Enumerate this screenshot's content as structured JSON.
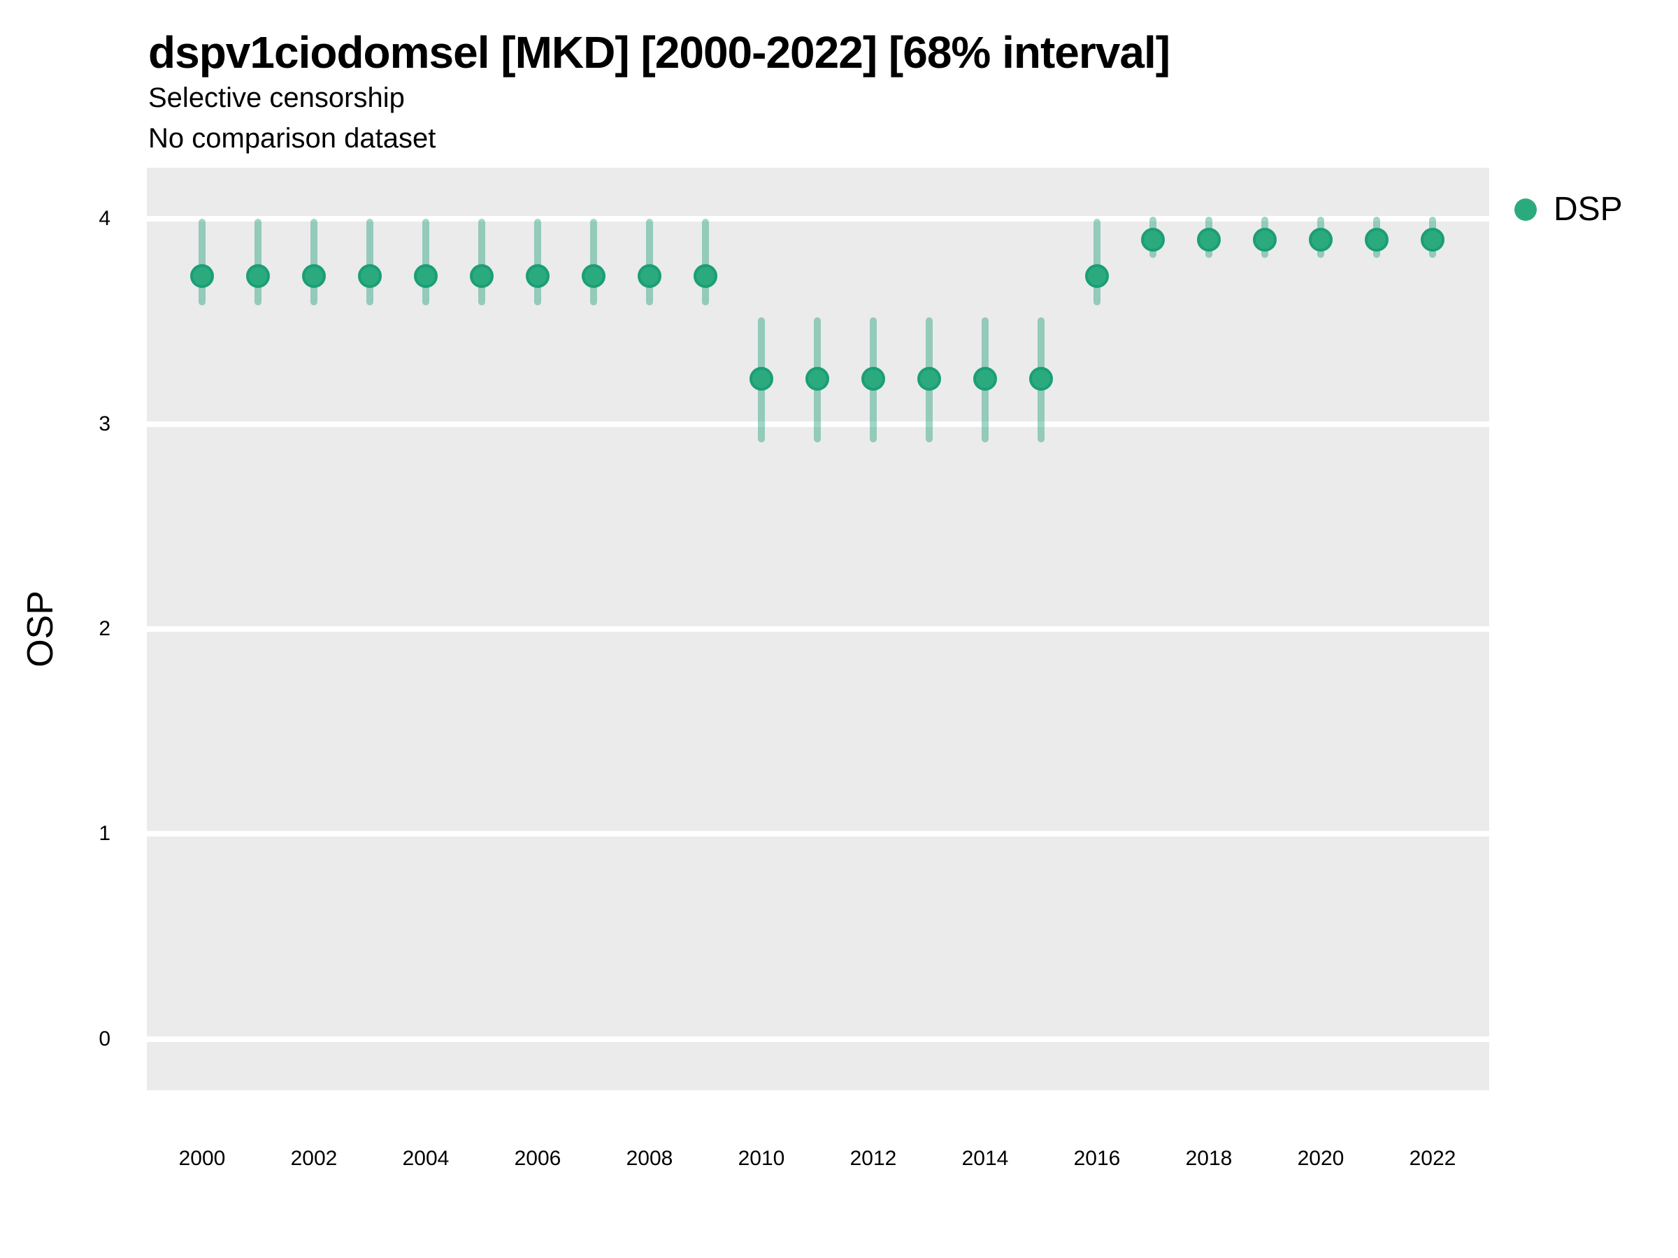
{
  "colors": {
    "point_fill": "#2bab7d",
    "point_border": "#1b9e77",
    "interval": "rgba(27,158,119,0.42)",
    "panel_bg": "#ebebeb",
    "gridline": "#ffffff",
    "text": "#000000"
  },
  "chart_data": {
    "type": "pointrange",
    "title": "dspv1ciodomsel [MKD] [2000-2022] [68% interval]",
    "subtitle": "Selective censorship",
    "subtitle2": "No comparison dataset",
    "xlabel": "",
    "ylabel": "OSP",
    "interval_level": "68%",
    "x_ticks": [
      2000,
      2002,
      2004,
      2006,
      2008,
      2010,
      2012,
      2014,
      2016,
      2018,
      2020,
      2022
    ],
    "y_ticks": [
      4,
      3,
      2,
      1,
      0
    ],
    "xlim": [
      1999,
      2023
    ],
    "ylim": [
      -0.25,
      4.25
    ],
    "grid": "horizontal-major-only",
    "legend_position": "right",
    "series": [
      {
        "name": "DSP",
        "points": [
          {
            "x": 2000,
            "y": 3.72,
            "lo": 3.58,
            "hi": 4.0
          },
          {
            "x": 2001,
            "y": 3.72,
            "lo": 3.58,
            "hi": 4.0
          },
          {
            "x": 2002,
            "y": 3.72,
            "lo": 3.58,
            "hi": 4.0
          },
          {
            "x": 2003,
            "y": 3.72,
            "lo": 3.58,
            "hi": 4.0
          },
          {
            "x": 2004,
            "y": 3.72,
            "lo": 3.58,
            "hi": 4.0
          },
          {
            "x": 2005,
            "y": 3.72,
            "lo": 3.58,
            "hi": 4.0
          },
          {
            "x": 2006,
            "y": 3.72,
            "lo": 3.58,
            "hi": 4.0
          },
          {
            "x": 2007,
            "y": 3.72,
            "lo": 3.58,
            "hi": 4.0
          },
          {
            "x": 2008,
            "y": 3.72,
            "lo": 3.58,
            "hi": 4.0
          },
          {
            "x": 2009,
            "y": 3.72,
            "lo": 3.58,
            "hi": 4.0
          },
          {
            "x": 2010,
            "y": 3.22,
            "lo": 2.91,
            "hi": 3.52
          },
          {
            "x": 2011,
            "y": 3.22,
            "lo": 2.91,
            "hi": 3.52
          },
          {
            "x": 2012,
            "y": 3.22,
            "lo": 2.91,
            "hi": 3.52
          },
          {
            "x": 2013,
            "y": 3.22,
            "lo": 2.91,
            "hi": 3.52
          },
          {
            "x": 2014,
            "y": 3.22,
            "lo": 2.91,
            "hi": 3.52
          },
          {
            "x": 2015,
            "y": 3.22,
            "lo": 2.91,
            "hi": 3.52
          },
          {
            "x": 2016,
            "y": 3.72,
            "lo": 3.58,
            "hi": 4.0
          },
          {
            "x": 2017,
            "y": 3.9,
            "lo": 3.81,
            "hi": 4.01
          },
          {
            "x": 2018,
            "y": 3.9,
            "lo": 3.81,
            "hi": 4.01
          },
          {
            "x": 2019,
            "y": 3.9,
            "lo": 3.81,
            "hi": 4.01
          },
          {
            "x": 2020,
            "y": 3.9,
            "lo": 3.81,
            "hi": 4.01
          },
          {
            "x": 2021,
            "y": 3.9,
            "lo": 3.81,
            "hi": 4.01
          },
          {
            "x": 2022,
            "y": 3.9,
            "lo": 3.81,
            "hi": 4.01
          }
        ]
      }
    ]
  }
}
